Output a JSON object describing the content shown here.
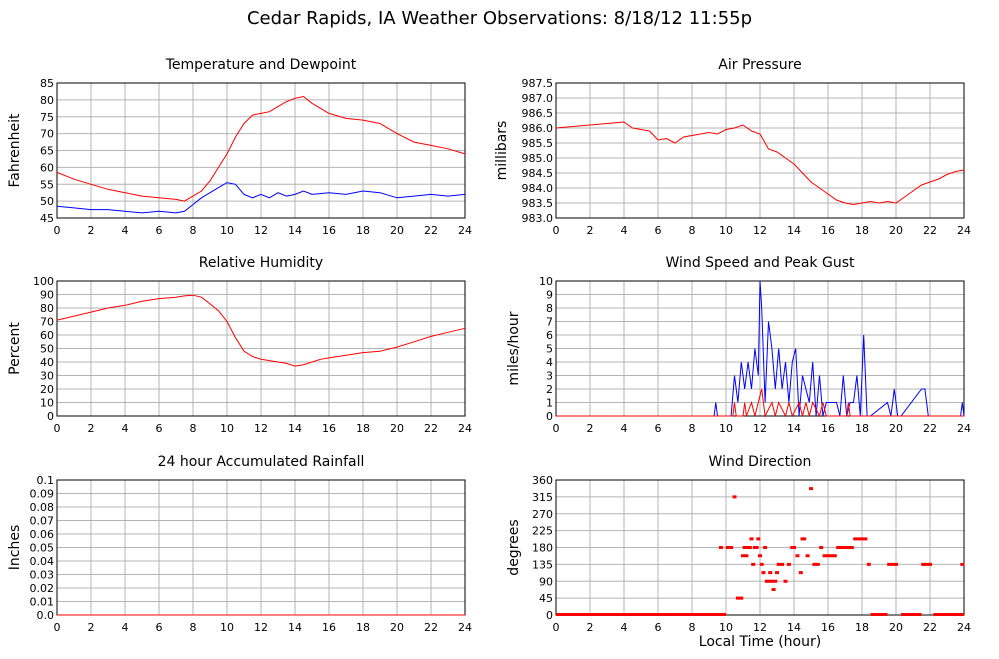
{
  "page": {
    "title": "Cedar Rapids, IA Weather Observations: 8/18/12 11:55p",
    "xlabel": "Local Time (hour)"
  },
  "chart_data": [
    {
      "type": "line",
      "title": "Temperature and Dewpoint",
      "ylabel": "Fahrenheit",
      "xlim": [
        0,
        24
      ],
      "ylim": [
        45,
        85
      ],
      "xticks": [
        0,
        2,
        4,
        6,
        8,
        10,
        12,
        14,
        16,
        18,
        20,
        22,
        24
      ],
      "yticks": [
        45,
        50,
        55,
        60,
        65,
        70,
        75,
        80,
        85
      ],
      "ytick_labels": [
        "45",
        "50",
        "55",
        "60",
        "65",
        "70",
        "75",
        "80",
        "85"
      ],
      "grid": true,
      "series": [
        {
          "color": "#ff0000",
          "x": [
            0,
            1,
            2,
            3,
            4,
            5,
            6,
            7,
            7.5,
            8,
            8.5,
            9,
            9.5,
            10,
            10.5,
            11,
            11.5,
            12,
            12.5,
            13,
            13.5,
            14,
            14.5,
            15,
            15.5,
            16,
            17,
            18,
            19,
            20,
            21,
            22,
            23,
            24
          ],
          "y": [
            58.5,
            56.5,
            55,
            53.5,
            52.5,
            51.5,
            51,
            50.5,
            50,
            51.5,
            53,
            56,
            60,
            64,
            69,
            73,
            75.5,
            76,
            76.5,
            78,
            79.5,
            80.5,
            81,
            79,
            77.5,
            76,
            74.5,
            74,
            73,
            70,
            67.5,
            66.5,
            65.5,
            64
          ]
        },
        {
          "color": "#0000ff",
          "x": [
            0,
            1,
            2,
            3,
            4,
            5,
            6,
            7,
            7.5,
            8,
            8.5,
            9,
            9.5,
            10,
            10.5,
            11,
            11.5,
            12,
            12.5,
            13,
            13.5,
            14,
            14.5,
            15,
            16,
            17,
            18,
            19,
            20,
            21,
            22,
            23,
            24
          ],
          "y": [
            48.5,
            48,
            47.5,
            47.5,
            47,
            46.5,
            47,
            46.5,
            47,
            49,
            51,
            52.5,
            54,
            55.5,
            55,
            52,
            51,
            52,
            51,
            52.5,
            51.5,
            52,
            53,
            52,
            52.5,
            52,
            53,
            52.5,
            51,
            51.5,
            52,
            51.5,
            52
          ]
        }
      ]
    },
    {
      "type": "line",
      "title": "Air Pressure",
      "ylabel": "millibars",
      "xlim": [
        0,
        24
      ],
      "ylim": [
        983,
        987.5
      ],
      "xticks": [
        0,
        2,
        4,
        6,
        8,
        10,
        12,
        14,
        16,
        18,
        20,
        22,
        24
      ],
      "yticks": [
        983,
        983.5,
        984,
        984.5,
        985,
        985.5,
        986,
        986.5,
        987,
        987.5
      ],
      "ytick_labels": [
        "983.0",
        "983.5",
        "984.0",
        "984.5",
        "985.0",
        "985.5",
        "986.0",
        "986.5",
        "987.0",
        "987.5"
      ],
      "grid": true,
      "series": [
        {
          "color": "#ff0000",
          "x": [
            0,
            1,
            2,
            3,
            4,
            4.5,
            5,
            5.5,
            6,
            6.5,
            7,
            7.5,
            8,
            8.5,
            9,
            9.5,
            10,
            10.5,
            11,
            11.5,
            12,
            12.5,
            13,
            13.5,
            14,
            14.5,
            15,
            15.5,
            16,
            16.5,
            17,
            17.5,
            18,
            18.5,
            19,
            19.5,
            20,
            20.5,
            21,
            21.5,
            22,
            22.5,
            23,
            23.5,
            24
          ],
          "y": [
            986,
            986.05,
            986.1,
            986.15,
            986.2,
            986,
            985.95,
            985.9,
            985.6,
            985.65,
            985.5,
            985.7,
            985.75,
            985.8,
            985.85,
            985.8,
            985.95,
            986,
            986.1,
            985.9,
            985.8,
            985.3,
            985.2,
            985,
            984.8,
            984.5,
            984.2,
            984,
            983.8,
            983.6,
            983.5,
            983.45,
            983.5,
            983.55,
            983.5,
            983.55,
            983.5,
            983.7,
            983.9,
            984.1,
            984.2,
            984.3,
            984.45,
            984.55,
            984.6
          ]
        }
      ]
    },
    {
      "type": "line",
      "title": "Relative Humidity",
      "ylabel": "Percent",
      "xlim": [
        0,
        24
      ],
      "ylim": [
        0,
        100
      ],
      "xticks": [
        0,
        2,
        4,
        6,
        8,
        10,
        12,
        14,
        16,
        18,
        20,
        22,
        24
      ],
      "yticks": [
        0,
        10,
        20,
        30,
        40,
        50,
        60,
        70,
        80,
        90,
        100
      ],
      "ytick_labels": [
        "0",
        "10",
        "20",
        "30",
        "40",
        "50",
        "60",
        "70",
        "80",
        "90",
        "100"
      ],
      "grid": true,
      "series": [
        {
          "color": "#ff0000",
          "x": [
            0,
            1,
            2,
            3,
            4,
            5,
            6,
            7,
            7.5,
            8,
            8.5,
            9,
            9.5,
            10,
            10.5,
            11,
            11.5,
            12,
            12.5,
            13,
            13.5,
            14,
            14.5,
            15,
            15.5,
            16,
            17,
            18,
            19,
            20,
            21,
            22,
            23,
            24
          ],
          "y": [
            71,
            74,
            77,
            80,
            82,
            85,
            87,
            88,
            89,
            89.5,
            88,
            83,
            78,
            70,
            58,
            48,
            44,
            42,
            41,
            40,
            39,
            37,
            38,
            40,
            42,
            43,
            45,
            47,
            48,
            51,
            55,
            59,
            62,
            65
          ]
        }
      ]
    },
    {
      "type": "line",
      "title": "Wind Speed and Peak Gust",
      "ylabel": "miles/hour",
      "xlim": [
        0,
        24
      ],
      "ylim": [
        0,
        10
      ],
      "xticks": [
        0,
        2,
        4,
        6,
        8,
        10,
        12,
        14,
        16,
        18,
        20,
        22,
        24
      ],
      "yticks": [
        0,
        1,
        2,
        3,
        4,
        5,
        6,
        7,
        8,
        9,
        10
      ],
      "ytick_labels": [
        "0",
        "1",
        "2",
        "3",
        "4",
        "5",
        "6",
        "7",
        "8",
        "9",
        "10"
      ],
      "grid": true,
      "series": [
        {
          "color": "#0000ff",
          "x": [
            0,
            9.3,
            9.4,
            9.5,
            10.3,
            10.5,
            10.7,
            10.9,
            11.1,
            11.3,
            11.5,
            11.7,
            11.9,
            12.0,
            12.1,
            12.3,
            12.5,
            12.7,
            12.9,
            13.1,
            13.3,
            13.5,
            13.7,
            13.9,
            14.1,
            14.3,
            14.5,
            14.7,
            14.9,
            15.1,
            15.3,
            15.5,
            15.7,
            15.9,
            16.1,
            16.5,
            16.7,
            16.9,
            17.1,
            17.3,
            17.5,
            17.7,
            17.9,
            18.1,
            18.3,
            18.5,
            19.5,
            19.7,
            19.9,
            20.1,
            20.3,
            21.5,
            21.7,
            21.9,
            22.1,
            23.8,
            23.9,
            24
          ],
          "y": [
            0,
            0,
            1,
            0,
            0,
            3,
            1,
            4,
            2,
            4,
            2,
            5,
            3,
            10,
            8,
            1,
            7,
            5,
            2,
            5,
            2,
            4,
            1,
            4,
            5,
            0,
            3,
            2,
            1,
            4,
            0,
            3,
            0,
            1,
            1,
            1,
            0,
            3,
            0,
            1,
            1,
            3,
            0,
            6,
            0,
            0,
            1,
            0,
            2,
            0,
            0,
            2,
            2,
            0,
            0,
            0,
            1,
            0
          ]
        },
        {
          "color": "#ff0000",
          "x": [
            0,
            10.4,
            10.5,
            10.6,
            11.0,
            11.1,
            11.2,
            11.5,
            11.7,
            11.9,
            12.1,
            12.3,
            12.7,
            12.9,
            13.1,
            13.5,
            13.7,
            13.9,
            14.3,
            14.5,
            14.7,
            14.9,
            15.1,
            15.5,
            15.7,
            15.9,
            17.1,
            17.2,
            17.3,
            24
          ],
          "y": [
            0,
            0,
            1,
            0,
            0,
            1,
            0,
            1,
            0,
            1,
            2,
            0,
            1,
            0,
            1,
            0,
            1,
            0,
            1,
            0,
            1,
            0,
            1,
            0,
            1,
            0,
            0,
            1,
            0,
            0
          ]
        }
      ]
    },
    {
      "type": "line",
      "title": "24 hour Accumulated Rainfall",
      "ylabel": "Inches",
      "xlim": [
        0,
        24
      ],
      "ylim": [
        0,
        0.1
      ],
      "xticks": [
        0,
        2,
        4,
        6,
        8,
        10,
        12,
        14,
        16,
        18,
        20,
        22,
        24
      ],
      "yticks": [
        0,
        0.01,
        0.02,
        0.03,
        0.04,
        0.05,
        0.06,
        0.07,
        0.08,
        0.09,
        0.1
      ],
      "ytick_labels": [
        "0.0",
        "0.01",
        "0.02",
        "0.03",
        "0.04",
        "0.05",
        "0.06",
        "0.07",
        "0.08",
        "0.09",
        "0.1"
      ],
      "grid": true,
      "series": [
        {
          "color": "#ff0000",
          "x": [
            0,
            24
          ],
          "y": [
            0,
            0
          ]
        }
      ]
    },
    {
      "type": "scatter",
      "title": "Wind Direction",
      "ylabel": "degrees",
      "xlim": [
        0,
        24
      ],
      "ylim": [
        0,
        360
      ],
      "xticks": [
        0,
        2,
        4,
        6,
        8,
        10,
        12,
        14,
        16,
        18,
        20,
        22,
        24
      ],
      "yticks": [
        0,
        45,
        90,
        135,
        180,
        225,
        270,
        315,
        360
      ],
      "ytick_labels": [
        "0",
        "45",
        "90",
        "135",
        "180",
        "225",
        "270",
        "315",
        "360"
      ],
      "grid": true,
      "series": [
        {
          "color": "#ff0000",
          "x": [
            9.7,
            10.1,
            10.3,
            10.5,
            10.7,
            10.9,
            11.0,
            11.1,
            11.2,
            11.3,
            11.4,
            11.5,
            11.6,
            11.7,
            11.8,
            11.9,
            12.0,
            12.1,
            12.2,
            12.3,
            12.4,
            12.5,
            12.6,
            12.7,
            12.8,
            12.9,
            13.0,
            13.1,
            13.3,
            13.5,
            13.7,
            13.9,
            14.0,
            14.2,
            14.4,
            14.5,
            14.6,
            14.8,
            15.0,
            15.2,
            15.4,
            15.6,
            15.8,
            16.0,
            16.2,
            16.4,
            16.6,
            16.8,
            17.0,
            17.2,
            17.4,
            17.6,
            17.8,
            18.0,
            18.2,
            18.4,
            19.6,
            19.8,
            20.0,
            21.6,
            21.8,
            22.0,
            23.9
          ],
          "y": [
            180,
            180,
            180,
            315,
            45,
            45,
            158,
            180,
            158,
            180,
            180,
            203,
            135,
            180,
            180,
            203,
            158,
            135,
            113,
            180,
            90,
            90,
            113,
            90,
            68,
            90,
            113,
            135,
            135,
            90,
            135,
            180,
            180,
            158,
            113,
            203,
            203,
            158,
            337,
            135,
            135,
            180,
            158,
            158,
            158,
            158,
            180,
            180,
            180,
            180,
            180,
            203,
            203,
            203,
            203,
            135,
            135,
            135,
            135,
            135,
            135,
            135,
            135
          ]
        },
        {
          "color": "#ff0000",
          "x": [
            0,
            10.0
          ],
          "y": [
            0,
            0
          ],
          "style": "thick-line"
        },
        {
          "color": "#ff0000",
          "x": [
            18.5,
            19.5
          ],
          "y": [
            0,
            0
          ],
          "style": "thick-line"
        },
        {
          "color": "#ff0000",
          "x": [
            20.3,
            21.5
          ],
          "y": [
            0,
            0
          ],
          "style": "thick-line"
        },
        {
          "color": "#ff0000",
          "x": [
            22.2,
            24.0
          ],
          "y": [
            0,
            0
          ],
          "style": "thick-line"
        }
      ]
    }
  ]
}
